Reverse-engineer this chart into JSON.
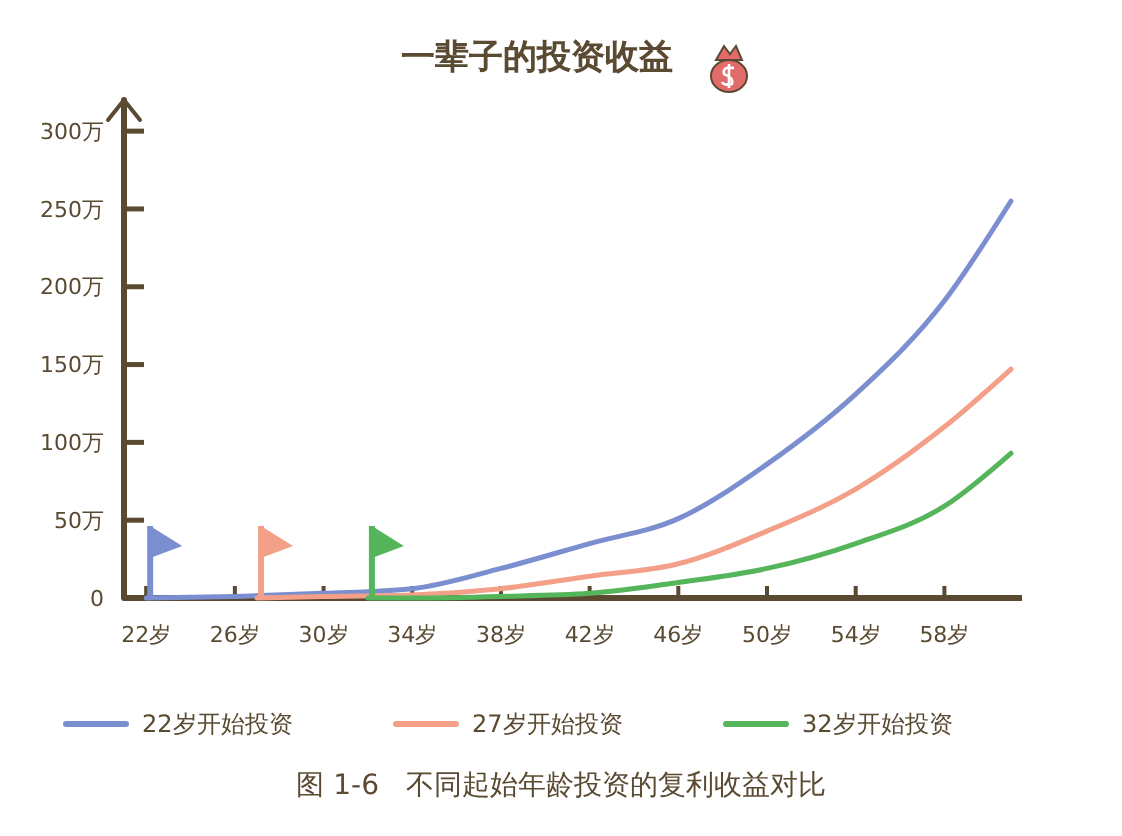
{
  "chart_data": {
    "type": "line",
    "title": "一辈子的投资收益",
    "xlim": [
      21,
      61.5
    ],
    "xticks": [
      {
        "value": 22,
        "label": "22岁"
      },
      {
        "value": 26,
        "label": "26岁"
      },
      {
        "value": 30,
        "label": "30岁"
      },
      {
        "value": 34,
        "label": "34岁"
      },
      {
        "value": 38,
        "label": "38岁"
      },
      {
        "value": 42,
        "label": "42岁"
      },
      {
        "value": 46,
        "label": "46岁"
      },
      {
        "value": 50,
        "label": "50岁"
      },
      {
        "value": 54,
        "label": "54岁"
      },
      {
        "value": 58,
        "label": "58岁"
      }
    ],
    "ylim": [
      0,
      320
    ],
    "yticks": [
      0,
      {
        "value": 50,
        "label": "50万"
      },
      {
        "value": 100,
        "label": "100万"
      },
      {
        "value": 150,
        "label": "150万"
      },
      {
        "value": 200,
        "label": "200万"
      },
      {
        "value": 250,
        "label": "250万"
      },
      {
        "value": 300,
        "label": "300万"
      }
    ],
    "series": [
      {
        "name": "22岁开始投资",
        "color": "#7b8fd0",
        "x": [
          22,
          26,
          30,
          34,
          38,
          42,
          46,
          50,
          54,
          58,
          61
        ],
        "values": [
          0,
          1,
          3,
          6,
          19,
          35,
          51,
          86,
          131,
          191,
          255
        ]
      },
      {
        "name": "27岁开始投资",
        "color": "#f4a088",
        "x": [
          27,
          30,
          34,
          38,
          42,
          46,
          50,
          54,
          58,
          61
        ],
        "values": [
          0,
          1,
          2,
          6,
          14,
          22,
          43,
          70,
          110,
          147
        ]
      },
      {
        "name": "32岁开始投资",
        "color": "#55b55a",
        "x": [
          32,
          34,
          38,
          42,
          46,
          50,
          54,
          58,
          61
        ],
        "values": [
          0,
          0,
          1,
          3,
          10,
          19,
          35,
          59,
          93
        ]
      }
    ],
    "legend": "bottom",
    "grid": false,
    "annotations": [
      "图 1-6   不同起始年龄投资的复利收益对比"
    ]
  }
}
